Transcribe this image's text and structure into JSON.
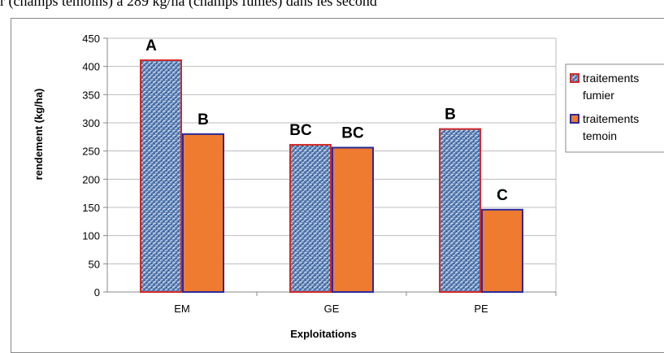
{
  "caption_fragment": "r (champs témoins) à 289 kg/ha (champs fumés) dans les second",
  "chart_data": {
    "type": "bar",
    "title": "",
    "xlabel": "Exploitations",
    "ylabel": "rendement (kg/ha)",
    "ylim": [
      0,
      450
    ],
    "yticks": [
      0,
      50,
      100,
      150,
      200,
      250,
      300,
      350,
      400,
      450
    ],
    "grid": true,
    "legend_position": "right",
    "categories": [
      "EM",
      "GE",
      "PE"
    ],
    "series": [
      {
        "name": "traitements fumier",
        "legend_lines": [
          "traitements",
          "fumier"
        ],
        "values": [
          411,
          261,
          289
        ],
        "letters": [
          "A",
          "BC",
          "B"
        ],
        "fill": "#5a7fb4",
        "stroke": "#d02a2a"
      },
      {
        "name": "traitements temoin",
        "legend_lines": [
          "traitements",
          "temoin"
        ],
        "values": [
          280,
          256,
          146
        ],
        "letters": [
          "B",
          "BC",
          "C"
        ],
        "fill": "#ee7b30",
        "stroke": "#2a2a9a"
      }
    ]
  }
}
